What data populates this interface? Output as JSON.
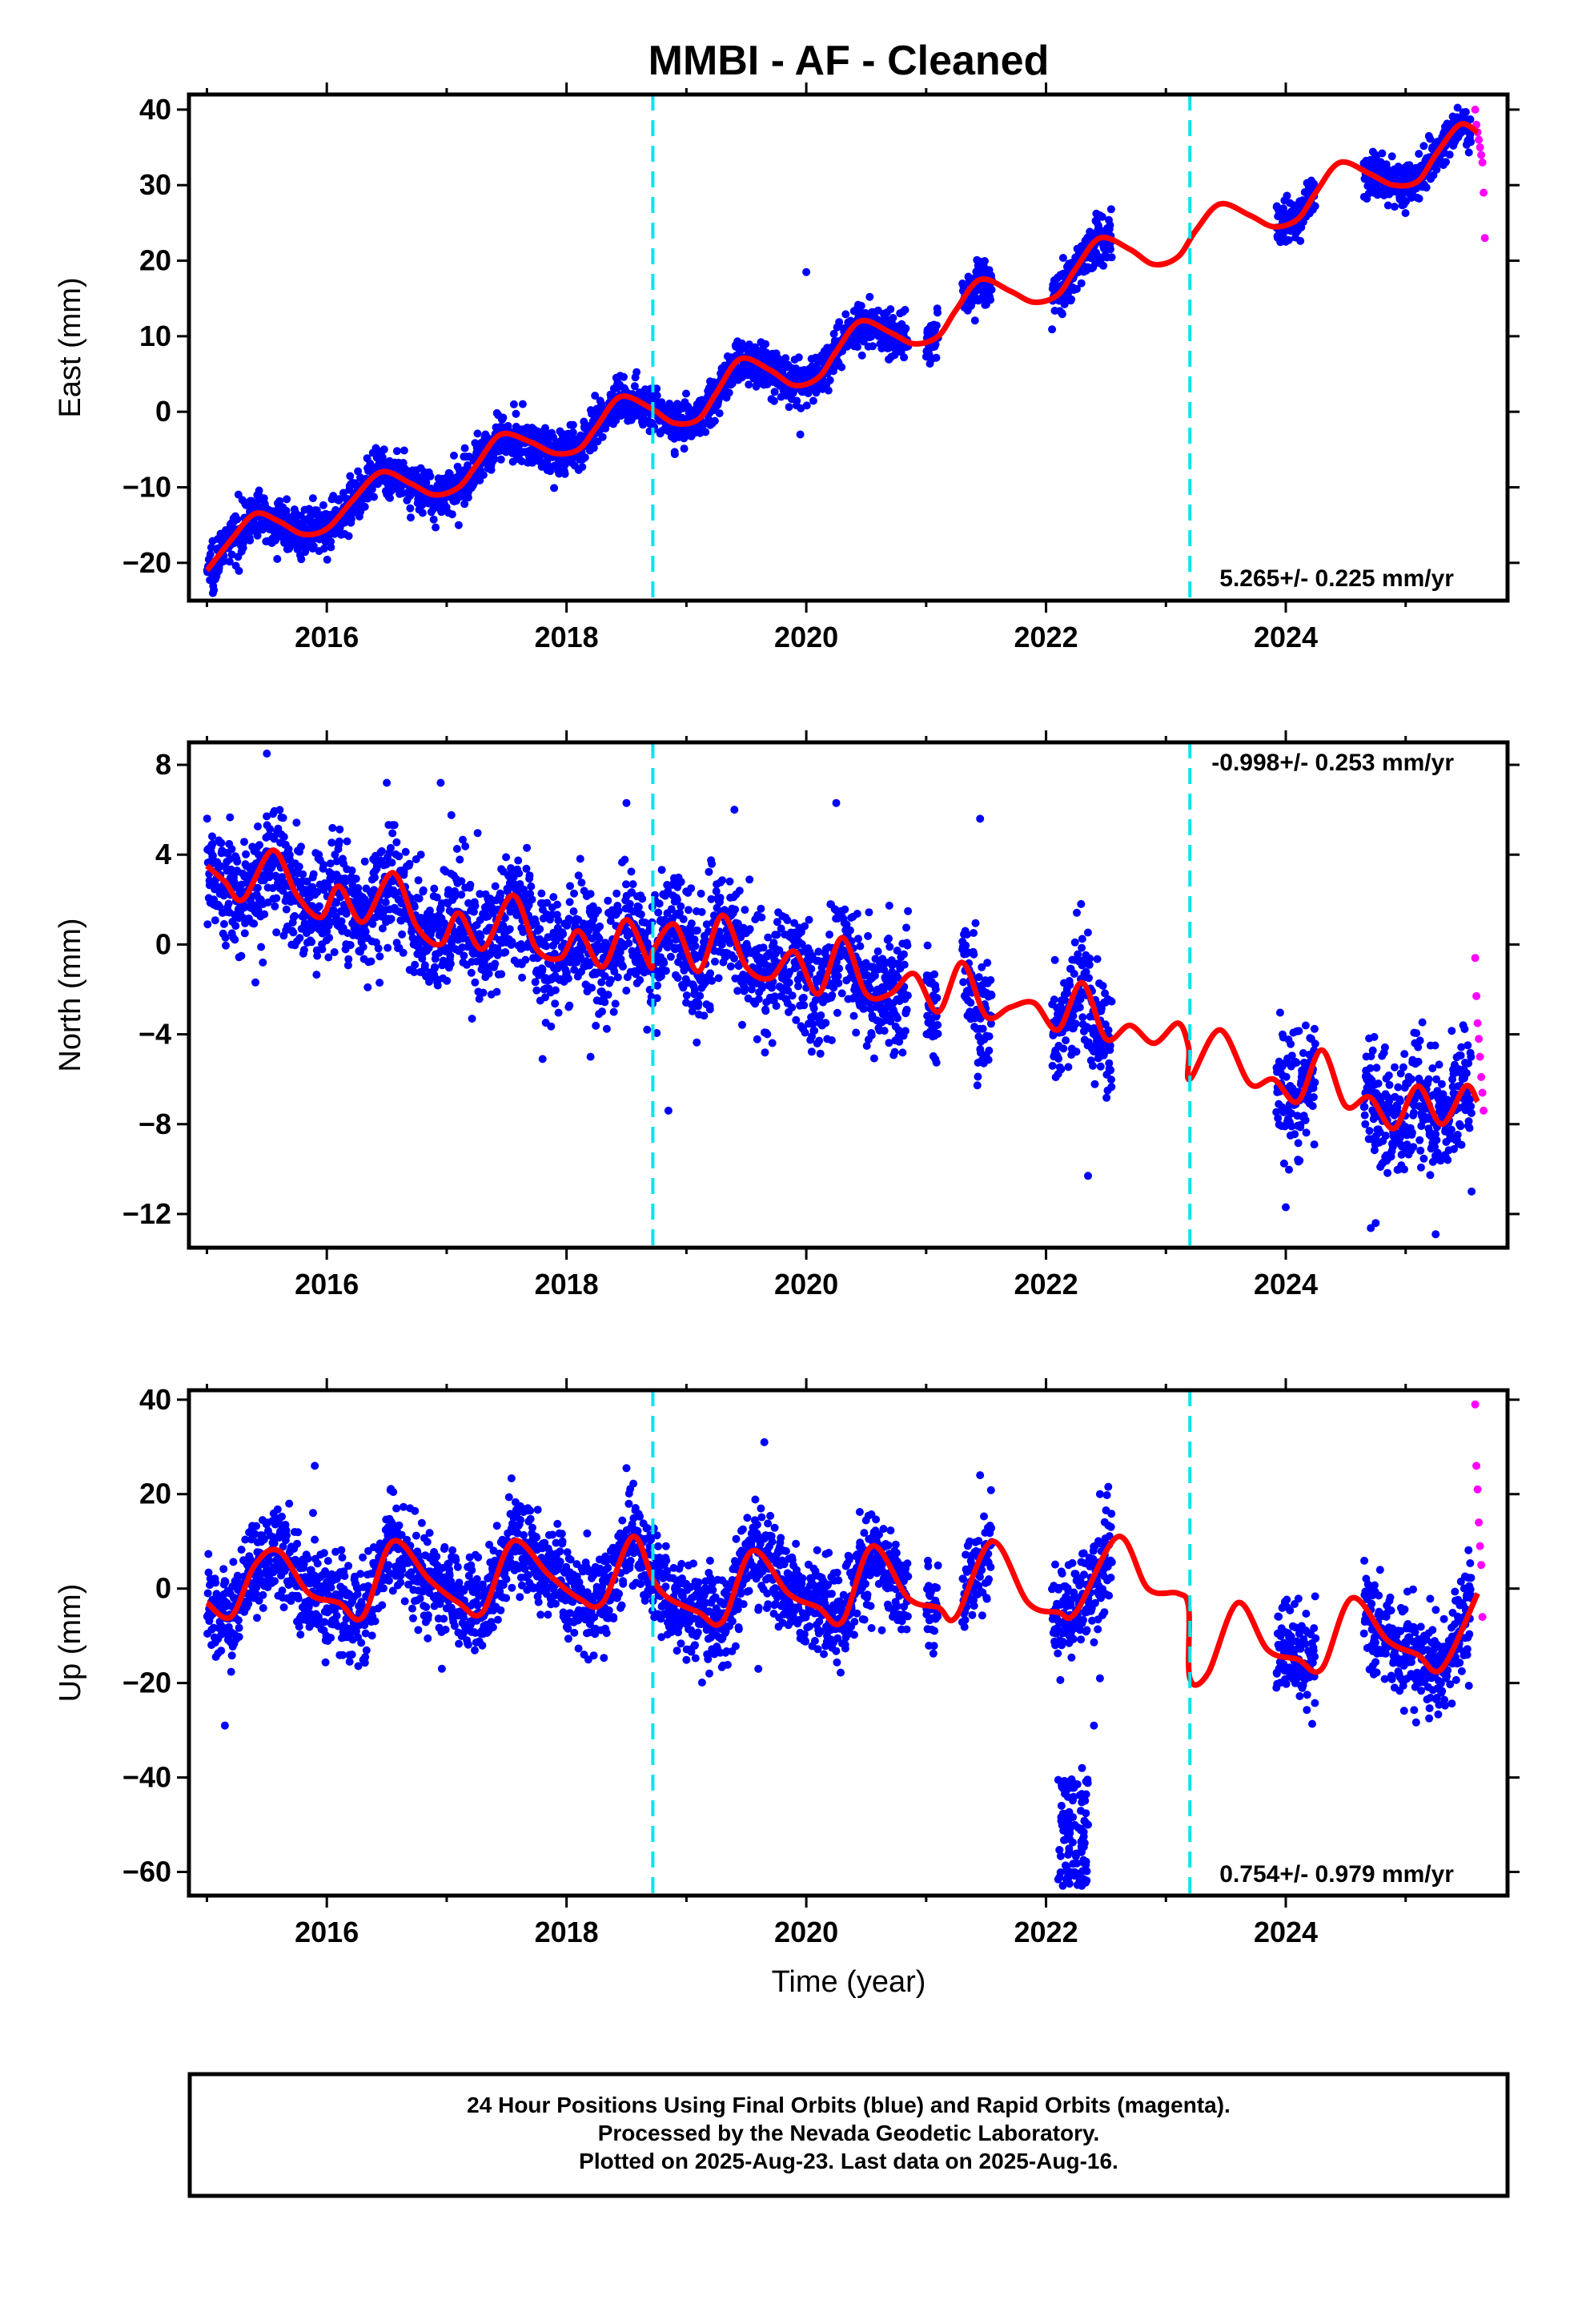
{
  "title": "MMBI  - AF - Cleaned",
  "x_axis_label": "Time (year)",
  "x_tick_labels": [
    "2016",
    "2018",
    "2020",
    "2022",
    "2024"
  ],
  "footer": {
    "line1": "24 Hour Positions Using Final Orbits (blue) and Rapid Orbits (magenta).",
    "line2": "Processed by the Nevada Geodetic Laboratory.",
    "line3": "Plotted on 2025-Aug-23. Last data on 2025-Aug-16."
  },
  "colors": {
    "final_orbits": "#0000ff",
    "rapid_orbits": "#ff00ff",
    "model": "#ff0000",
    "events": "#00e5ee"
  },
  "chart_data": [
    {
      "type": "scatter",
      "component": "East",
      "ylabel": "East (mm)",
      "xlim": [
        2014.85,
        2025.85
      ],
      "ylim": [
        -25,
        42
      ],
      "yticks": [
        -20,
        -10,
        0,
        10,
        20,
        30,
        40
      ],
      "rate_label": "5.265+/- 0.225 mm/yr",
      "event_lines_x": [
        2018.72,
        2023.2
      ],
      "model": {
        "name": "model",
        "x": [
          2015.0,
          2015.2,
          2015.4,
          2015.6,
          2015.8,
          2016.0,
          2016.2,
          2016.45,
          2016.7,
          2016.9,
          2017.1,
          2017.25,
          2017.45,
          2017.7,
          2017.9,
          2018.1,
          2018.25,
          2018.45,
          2018.7,
          2018.9,
          2019.1,
          2019.25,
          2019.45,
          2019.7,
          2019.9,
          2020.1,
          2020.25,
          2020.45,
          2020.7,
          2020.9,
          2021.1,
          2021.25,
          2021.45,
          2021.7,
          2021.9,
          2022.1,
          2022.25,
          2022.45,
          2022.7,
          2022.9,
          2023.1,
          2023.25,
          2023.45,
          2023.7,
          2023.9,
          2024.1,
          2024.25,
          2024.45,
          2024.7,
          2024.9,
          2025.1,
          2025.25,
          2025.45,
          2025.6
        ],
        "y": [
          -21,
          -17,
          -13.5,
          -14.5,
          -16.2,
          -15.5,
          -12,
          -8,
          -9.5,
          -11,
          -10,
          -7,
          -3,
          -4,
          -5.5,
          -5,
          -2,
          2,
          0.5,
          -1.5,
          -1,
          2.5,
          7,
          5.5,
          3.5,
          4.5,
          8,
          12,
          10.5,
          9,
          10,
          13.5,
          17.5,
          16,
          14.5,
          15.5,
          19,
          23,
          21.5,
          19.5,
          20.5,
          24,
          27.5,
          26,
          24.5,
          25.5,
          29,
          33,
          31.5,
          30,
          30.5,
          34,
          38,
          37
        ]
      },
      "final_orbits": {
        "name": "final_orbits",
        "segments": [
          [
            2015.0,
            2018.72
          ],
          [
            2018.72,
            2020.85
          ],
          [
            2021.0,
            2021.1
          ],
          [
            2021.3,
            2021.55
          ],
          [
            2022.05,
            2022.55
          ],
          [
            2023.92,
            2024.25
          ],
          [
            2024.65,
            2025.55
          ]
        ],
        "sample_count": 2900,
        "spread_mm": 1.5,
        "outliers": [
          [
            2020.0,
            18.5
          ],
          [
            2019.95,
            -3
          ],
          [
            2024.0,
            22.5
          ],
          [
            2015.05,
            -24
          ],
          [
            2016.7,
            -14
          ],
          [
            2017.1,
            -15
          ]
        ]
      },
      "rapid_orbits": {
        "name": "rapid_orbits",
        "x": [
          2025.58,
          2025.59,
          2025.6,
          2025.61,
          2025.62,
          2025.63,
          2025.64,
          2025.65,
          2025.66
        ],
        "y": [
          40,
          38,
          37,
          36,
          35,
          34,
          33,
          29,
          23
        ]
      }
    },
    {
      "type": "scatter",
      "component": "North",
      "ylabel": "North (mm)",
      "xlim": [
        2014.85,
        2025.85
      ],
      "ylim": [
        -13.5,
        9
      ],
      "yticks": [
        -12,
        -8,
        -4,
        0,
        4,
        8
      ],
      "rate_label": "-0.998+/- 0.253 mm/yr",
      "event_lines_x": [
        2018.72,
        2023.2
      ],
      "model": {
        "name": "model",
        "x": [
          2015.0,
          2015.15,
          2015.3,
          2015.55,
          2015.75,
          2015.95,
          2016.1,
          2016.3,
          2016.55,
          2016.75,
          2016.95,
          2017.1,
          2017.3,
          2017.55,
          2017.75,
          2017.95,
          2018.1,
          2018.3,
          2018.5,
          2018.7,
          2018.72,
          2018.9,
          2019.1,
          2019.3,
          2019.5,
          2019.7,
          2019.9,
          2020.1,
          2020.3,
          2020.5,
          2020.7,
          2020.9,
          2021.1,
          2021.3,
          2021.5,
          2021.7,
          2021.9,
          2022.1,
          2022.3,
          2022.5,
          2022.7,
          2022.9,
          2023.1,
          2023.19,
          2023.2,
          2023.45,
          2023.7,
          2023.9,
          2024.1,
          2024.3,
          2024.5,
          2024.7,
          2024.9,
          2025.1,
          2025.3,
          2025.5,
          2025.6
        ],
        "y": [
          3.5,
          2.8,
          2.0,
          4.2,
          2.2,
          1.2,
          2.6,
          1.0,
          3.2,
          0.8,
          0,
          1.4,
          -0.2,
          2.2,
          -0.2,
          -0.6,
          0.6,
          -1.0,
          1.1,
          -1.0,
          -0.3,
          0.9,
          -1.2,
          1.3,
          -1.0,
          -1.5,
          -0.3,
          -2.2,
          0.3,
          -2.2,
          -2.2,
          -1.3,
          -3.0,
          -0.8,
          -3.2,
          -2.8,
          -2.6,
          -3.8,
          -1.7,
          -4.2,
          -3.6,
          -4.4,
          -3.5,
          -4.6,
          -6.0,
          -3.8,
          -6.2,
          -6.0,
          -7.0,
          -4.7,
          -7.2,
          -6.8,
          -8.2,
          -6.3,
          -8.0,
          -6.3,
          -7.0
        ]
      },
      "final_orbits": {
        "name": "final_orbits",
        "segments": [
          [
            2015.0,
            2018.72
          ],
          [
            2018.72,
            2020.85
          ],
          [
            2021.0,
            2021.1
          ],
          [
            2021.3,
            2021.55
          ],
          [
            2022.05,
            2022.55
          ],
          [
            2023.92,
            2024.25
          ],
          [
            2024.65,
            2025.55
          ]
        ],
        "sample_count": 2900,
        "spread_mm": 1.3,
        "outliers": [
          [
            2015.5,
            8.5
          ],
          [
            2016.5,
            7.2
          ],
          [
            2016.95,
            7.2
          ],
          [
            2018.5,
            6.3
          ],
          [
            2020.25,
            6.3
          ],
          [
            2021.45,
            5.6
          ],
          [
            2019.4,
            6.0
          ],
          [
            2018.85,
            -7.4
          ],
          [
            2022.35,
            -10.3
          ],
          [
            2024.0,
            -11.7
          ],
          [
            2024.75,
            -12.4
          ],
          [
            2025.25,
            -12.9
          ],
          [
            2025.55,
            -11.0
          ],
          [
            2017.8,
            -5.1
          ],
          [
            2018.2,
            -5.0
          ]
        ]
      },
      "rapid_orbits": {
        "name": "rapid_orbits",
        "x": [
          2025.58,
          2025.59,
          2025.6,
          2025.61,
          2025.62,
          2025.63,
          2025.64,
          2025.65
        ],
        "y": [
          -0.6,
          -2.3,
          -3.5,
          -4.2,
          -5.0,
          -5.9,
          -6.6,
          -7.4
        ]
      }
    },
    {
      "type": "scatter",
      "component": "Up",
      "ylabel": "Up (mm)",
      "xlim": [
        2014.85,
        2025.85
      ],
      "ylim": [
        -65,
        42
      ],
      "yticks": [
        -60,
        -40,
        -20,
        0,
        20,
        40
      ],
      "rate_label": "0.754+/- 0.979 mm/yr",
      "event_lines_x": [
        2018.72,
        2023.2
      ],
      "model": {
        "name": "model",
        "x": [
          2015.0,
          2015.2,
          2015.4,
          2015.6,
          2015.85,
          2016.1,
          2016.3,
          2016.55,
          2016.85,
          2017.1,
          2017.3,
          2017.55,
          2017.85,
          2018.1,
          2018.3,
          2018.55,
          2018.72,
          2018.85,
          2019.1,
          2019.3,
          2019.55,
          2019.85,
          2020.1,
          2020.3,
          2020.55,
          2020.85,
          2021.1,
          2021.25,
          2021.55,
          2021.85,
          2022.1,
          2022.25,
          2022.6,
          2022.85,
          2023.1,
          2023.19,
          2023.2,
          2023.35,
          2023.6,
          2023.85,
          2024.1,
          2024.3,
          2024.55,
          2024.85,
          2025.1,
          2025.3,
          2025.6
        ],
        "y": [
          -3,
          -6,
          5,
          8,
          -1,
          -3,
          -6,
          10,
          2,
          -3,
          -5,
          10,
          3,
          -2,
          -3,
          11,
          2,
          -2,
          -5,
          -7,
          8,
          -1,
          -4,
          -7,
          9,
          -2,
          -4,
          -6,
          10,
          -3,
          -5,
          -5,
          11,
          0,
          -1,
          -4,
          -19,
          -18,
          -3,
          -13,
          -15,
          -17,
          -2,
          -11,
          -14,
          -17,
          -1
        ]
      },
      "final_orbits": {
        "name": "final_orbits",
        "segments": [
          [
            2015.0,
            2018.72
          ],
          [
            2018.72,
            2020.85
          ],
          [
            2021.0,
            2021.1
          ],
          [
            2021.3,
            2021.55
          ],
          [
            2022.05,
            2022.55
          ],
          [
            2023.92,
            2024.25
          ],
          [
            2024.65,
            2025.55
          ]
        ],
        "sample_count": 2900,
        "spread_mm": 5.0,
        "outliers": [
          [
            2015.15,
            -29
          ],
          [
            2015.9,
            26
          ],
          [
            2018.5,
            25.5
          ],
          [
            2019.65,
            31
          ],
          [
            2021.45,
            24
          ],
          [
            2022.3,
            -38
          ],
          [
            2022.35,
            -50
          ],
          [
            2022.4,
            -29
          ],
          [
            2022.45,
            -19
          ],
          [
            2022.45,
            20
          ],
          [
            2019.6,
            -17
          ]
        ],
        "cluster": {
          "x_range": [
            2022.1,
            2022.35
          ],
          "y_range": [
            -63,
            -40
          ]
        }
      },
      "rapid_orbits": {
        "name": "rapid_orbits",
        "x": [
          2025.58,
          2025.59,
          2025.6,
          2025.61,
          2025.62,
          2025.63,
          2025.64
        ],
        "y": [
          39,
          26,
          21,
          14,
          9,
          5,
          -6
        ]
      }
    }
  ]
}
